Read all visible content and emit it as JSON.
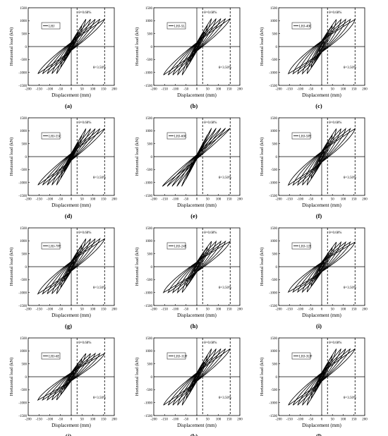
{
  "figure": {
    "xlabel": "Displacement (mm)",
    "ylabel": "Horizontal load (kN)",
    "xticks": [
      -200,
      -150,
      -100,
      -50,
      0,
      50,
      100,
      150,
      200
    ],
    "yticks": [
      -1500,
      -1000,
      -500,
      0,
      500,
      1000,
      1500
    ],
    "xlim": [
      -200,
      200
    ],
    "ylim": [
      -1500,
      1500
    ],
    "drift_small_label": "θ=0.68%",
    "drift_large_label": "θ=3.50%",
    "drift_small_x": 27,
    "drift_large_x": 155
  },
  "chart_data": [
    {
      "type": "line",
      "panel_label": "(a)",
      "legend": "LHJ",
      "pos_peak": 1060,
      "neg_peak": -1050,
      "xmax": 155,
      "xmin": -155,
      "pinch": 0.25
    },
    {
      "type": "line",
      "panel_label": "(b)",
      "legend": "LHJ-5L",
      "pos_peak": 1080,
      "neg_peak": -1100,
      "xmax": 155,
      "xmin": -155,
      "pinch": 0.25
    },
    {
      "type": "line",
      "panel_label": "(c)",
      "legend": "LHJ-40C",
      "pos_peak": 1050,
      "neg_peak": -1050,
      "xmax": 155,
      "xmin": -155,
      "pinch": 0.18
    },
    {
      "type": "line",
      "panel_label": "(d)",
      "legend": "LHJ-55C",
      "pos_peak": 1080,
      "neg_peak": -1100,
      "xmax": 155,
      "xmin": -155,
      "pinch": 0.28
    },
    {
      "type": "line",
      "panel_label": "(e)",
      "legend": "LHJ-60C",
      "pos_peak": 1100,
      "neg_peak": -1150,
      "xmax": 155,
      "xmin": -160,
      "pinch": 0.35
    },
    {
      "type": "line",
      "panel_label": "(f)",
      "legend": "LHJ-5PE",
      "pos_peak": 1080,
      "neg_peak": -1100,
      "xmax": 155,
      "xmin": -155,
      "pinch": 0.2
    },
    {
      "type": "line",
      "panel_label": "(g)",
      "legend": "LHJ-7PE",
      "pos_peak": 1080,
      "neg_peak": -1050,
      "xmax": 155,
      "xmin": -155,
      "pinch": 0.22
    },
    {
      "type": "line",
      "panel_label": "(h)",
      "legend": "LHJ-24E",
      "pos_peak": 980,
      "neg_peak": -1000,
      "xmax": 155,
      "xmin": -155,
      "pinch": 0.2
    },
    {
      "type": "line",
      "panel_label": "(i)",
      "legend": "LHJ-12E",
      "pos_peak": 950,
      "neg_peak": -980,
      "xmax": 155,
      "xmin": -155,
      "pinch": 0.2
    },
    {
      "type": "line",
      "panel_label": "(j)",
      "legend": "LHJ-6E",
      "pos_peak": 900,
      "neg_peak": -900,
      "xmax": 155,
      "xmin": -155,
      "pinch": 0.22
    },
    {
      "type": "line",
      "panel_label": "(k)",
      "legend": "LHJ-1UP",
      "pos_peak": 1080,
      "neg_peak": -1100,
      "xmax": 155,
      "xmin": -155,
      "pinch": 0.25
    },
    {
      "type": "line",
      "panel_label": "(l)",
      "legend": "LHJ-3UP",
      "pos_peak": 1080,
      "neg_peak": -1100,
      "xmax": 155,
      "xmin": -155,
      "pinch": 0.25
    }
  ]
}
